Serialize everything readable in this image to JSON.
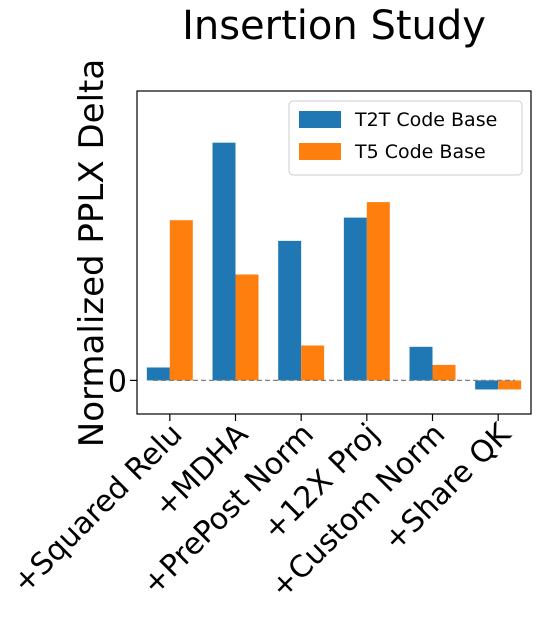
{
  "chart_data": {
    "type": "bar",
    "title": "Insertion Study",
    "xlabel": "",
    "ylabel": "Normalized PPLX Delta",
    "categories": [
      "+Squared Relu",
      "+MDHA",
      "+PrePost Norm",
      "+12X Proj",
      "+Custom Norm",
      "+Share QK"
    ],
    "series": [
      {
        "name": "T2T Code Base",
        "color": "#1f77b4",
        "values": [
          0.05,
          0.92,
          0.54,
          0.63,
          0.13,
          -0.035
        ]
      },
      {
        "name": "T5 Code Base",
        "color": "#ff7f0e",
        "values": [
          0.62,
          0.41,
          0.135,
          0.69,
          0.06,
          -0.035
        ]
      }
    ],
    "y_ticks": [
      {
        "value": 0,
        "label": "0"
      }
    ],
    "ylim": [
      -0.13,
      1.12
    ],
    "baseline": {
      "value": 0,
      "style": "dashed",
      "color": "#808080"
    },
    "grid": false,
    "legend_position": "top-right"
  }
}
